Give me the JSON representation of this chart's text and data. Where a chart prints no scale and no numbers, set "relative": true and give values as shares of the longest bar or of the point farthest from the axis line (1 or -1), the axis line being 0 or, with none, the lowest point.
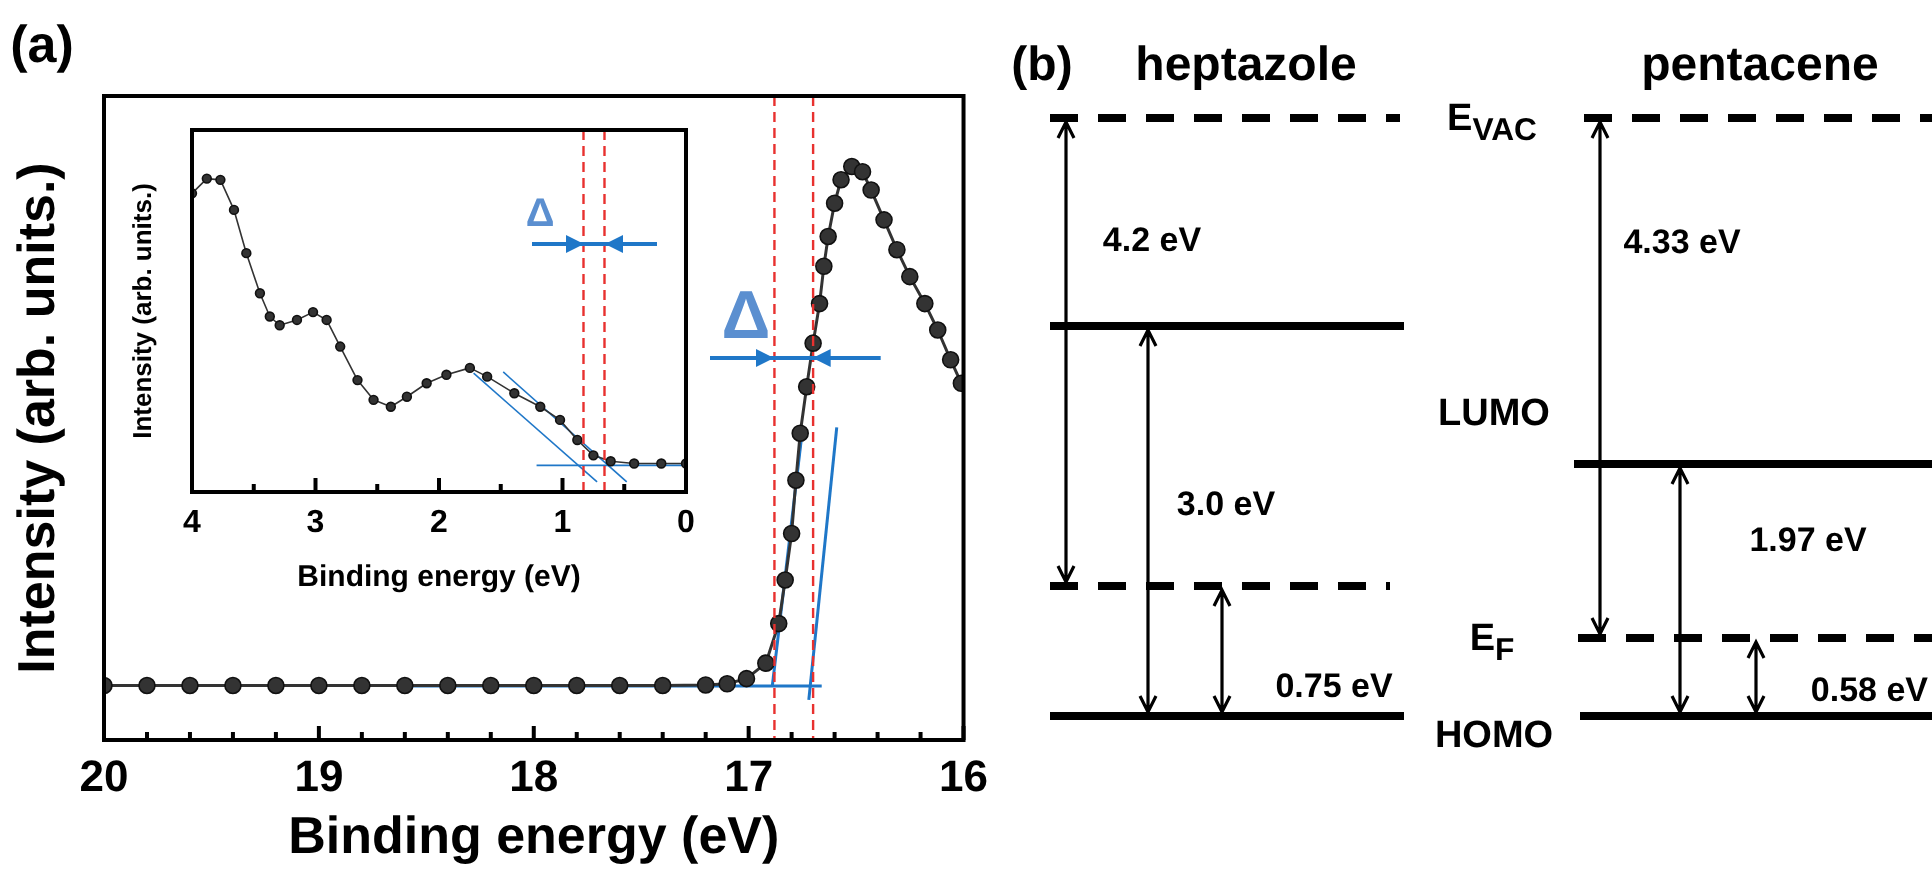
{
  "chart_data": [
    {
      "type": "line",
      "relative": true,
      "xlabel": "Binding energy (eV)",
      "ylabel": "Intensity (arb. units.)",
      "annotations": [
        "(a)",
        "Δ"
      ],
      "xlim": [
        20,
        16
      ],
      "xticks": [
        20,
        {
          "value": 19.8,
          "label": null
        },
        {
          "value": 19.6,
          "label": null
        },
        {
          "value": 19.4,
          "label": null
        },
        {
          "value": 19.2,
          "label": null
        },
        19,
        {
          "value": 18.8,
          "label": null
        },
        {
          "value": 18.6,
          "label": null
        },
        {
          "value": 18.4,
          "label": null
        },
        {
          "value": 18.2,
          "label": null
        },
        18,
        {
          "value": 17.8,
          "label": null
        },
        {
          "value": 17.6,
          "label": null
        },
        {
          "value": 17.4,
          "label": null
        },
        {
          "value": 17.2,
          "label": null
        },
        17,
        {
          "value": 16.8,
          "label": null
        },
        {
          "value": 16.6,
          "label": null
        },
        {
          "value": 16.4,
          "label": null
        },
        {
          "value": 16.2,
          "label": null
        },
        16
      ],
      "marker": "circle",
      "grid": false,
      "legend": false,
      "series": [
        {
          "color": "#333333",
          "x": [
            20,
            19.8,
            19.6,
            19.4,
            19.2,
            19,
            18.8,
            18.6,
            18.4,
            18.2,
            18,
            17.8,
            17.6,
            17.4,
            17.2,
            17.1,
            17.01,
            16.92,
            16.86,
            16.83,
            16.8,
            16.78,
            16.76,
            16.73,
            16.7,
            16.67,
            16.65,
            16.63,
            16.6,
            16.57,
            16.52,
            16.47,
            16.43,
            16.37,
            16.31,
            16.25,
            16.18,
            16.12,
            16.06,
            16.01
          ],
          "values": [
            0.095,
            0.095,
            0.095,
            0.095,
            0.095,
            0.095,
            0.095,
            0.095,
            0.095,
            0.095,
            0.095,
            0.095,
            0.095,
            0.095,
            0.096,
            0.098,
            0.107,
            0.134,
            0.203,
            0.279,
            0.36,
            0.453,
            0.535,
            0.616,
            0.692,
            0.761,
            0.826,
            0.878,
            0.936,
            0.977,
            1.0,
            0.991,
            0.959,
            0.907,
            0.855,
            0.808,
            0.761,
            0.715,
            0.663,
            0.622
          ]
        },
        {
          "type": "line",
          "marker": "none",
          "color": "#1f77c8",
          "x": [
            16.89,
            16.75
          ],
          "values": [
            0.094,
            0.54
          ]
        },
        {
          "type": "line",
          "marker": "none",
          "color": "#1f77c8",
          "x": [
            16.72,
            16.59
          ],
          "values": [
            0.07,
            0.545
          ]
        },
        {
          "type": "line",
          "marker": "none",
          "color": "#1f77c8",
          "x": [
            18.62,
            16.66
          ],
          "values": [
            0.094,
            0.094
          ]
        }
      ],
      "ref_lines": [
        {
          "axis": "x",
          "value": 16.88,
          "color": "#e8312f",
          "line_style": "dashed"
        },
        {
          "axis": "x",
          "value": 16.7,
          "color": "#e8312f",
          "line_style": "dashed"
        }
      ]
    },
    {
      "type": "line",
      "relative": true,
      "xlabel": "Binding energy (eV)",
      "ylabel": "Intensity (arb. units.)",
      "annotations": [
        "Δ"
      ],
      "xlim": [
        4,
        0
      ],
      "xticks": [
        4,
        {
          "value": 3.5,
          "label": null
        },
        3,
        {
          "value": 2.5,
          "label": null
        },
        2,
        {
          "value": 1.5,
          "label": null
        },
        1,
        {
          "value": 0.5,
          "label": null
        },
        0
      ],
      "marker": "circle",
      "grid": false,
      "legend": false,
      "series": [
        {
          "color": "#333333",
          "x": [
            4,
            3.88,
            3.77,
            3.66,
            3.56,
            3.45,
            3.37,
            3.29,
            3.15,
            3.02,
            2.91,
            2.8,
            2.66,
            2.53,
            2.39,
            2.26,
            2.1,
            1.94,
            1.75,
            1.61,
            1.39,
            1.18,
            1.02,
            0.88,
            0.75,
            0.61,
            0.42,
            0.2,
            0
          ],
          "values": [
            0.953,
            1.0,
            0.996,
            0.9,
            0.762,
            0.634,
            0.56,
            0.532,
            0.549,
            0.574,
            0.549,
            0.464,
            0.357,
            0.294,
            0.272,
            0.304,
            0.347,
            0.374,
            0.396,
            0.368,
            0.315,
            0.272,
            0.23,
            0.166,
            0.117,
            0.098,
            0.091,
            0.091,
            0.091
          ]
        },
        {
          "type": "line",
          "marker": "none",
          "color": "#1f77c8",
          "x": [
            1.72,
            0.72
          ],
          "values": [
            0.379,
            0.032
          ]
        },
        {
          "type": "line",
          "marker": "none",
          "color": "#1f77c8",
          "x": [
            1.48,
            0.48
          ],
          "values": [
            0.383,
            0.032
          ]
        },
        {
          "type": "line",
          "marker": "none",
          "color": "#1f77c8",
          "x": [
            1.21,
            0
          ],
          "values": [
            0.085,
            0.085
          ]
        }
      ],
      "ref_lines": [
        {
          "axis": "x",
          "value": 0.83,
          "color": "#e8312f",
          "line_style": "dashed"
        },
        {
          "axis": "x",
          "value": 0.66,
          "color": "#e8312f",
          "line_style": "dashed"
        }
      ]
    },
    {
      "type": "other",
      "annotations": [
        "(b)",
        "heptazole",
        "pentacene",
        "E$_{VAC}$",
        "LUMO",
        "E$_{F}$",
        "HOMO",
        "4.2 eV",
        "3.0 eV",
        "0.75 eV",
        "4.33 eV",
        "1.97 eV",
        "0.58 eV"
      ]
    }
  ]
}
